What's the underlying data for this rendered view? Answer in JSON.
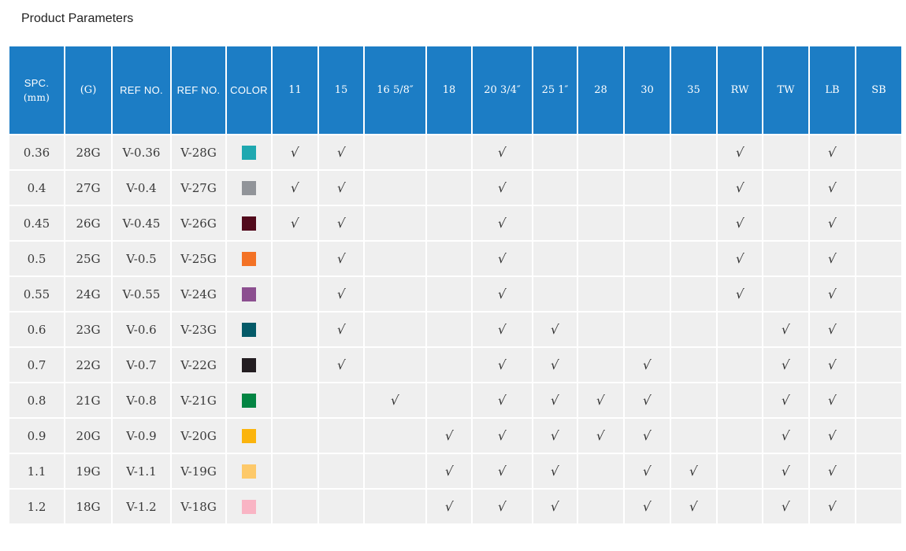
{
  "title": "Product Parameters",
  "colors": {
    "header_bg": "#1c7dc5",
    "cell_bg": "#efefef",
    "grid_line": "#ffffff",
    "body_text": "#3a3a3a",
    "highlight_text": "#ff6600",
    "check_mark": "#333333"
  },
  "check_glyph": "√",
  "table": {
    "columns": [
      {
        "label": "SPC.",
        "sub": "(mm)"
      },
      {
        "label": "(G)"
      },
      {
        "label": "REF NO."
      },
      {
        "label": "REF NO."
      },
      {
        "label": "COLOR"
      },
      {
        "label": "11"
      },
      {
        "label": "15"
      },
      {
        "label": "16 5/8″"
      },
      {
        "label": "18"
      },
      {
        "label": "20 3/4″"
      },
      {
        "label": "25 1″"
      },
      {
        "label": "28"
      },
      {
        "label": "30"
      },
      {
        "label": "35"
      },
      {
        "label": "RW"
      },
      {
        "label": "TW"
      },
      {
        "label": "LB"
      },
      {
        "label": "SB"
      }
    ],
    "size_column_labels": [
      "11",
      "15",
      "16 5/8″",
      "18",
      "20 3/4″",
      "25 1″",
      "28",
      "30",
      "35",
      "RW",
      "TW",
      "LB",
      "SB"
    ],
    "rows": [
      {
        "spc": "0.36",
        "g": "28G",
        "ref1": "V-0.36",
        "ref2": "V-28G",
        "color": "#1fa8b0",
        "ref1_highlight": false,
        "checks": [
          1,
          1,
          0,
          0,
          1,
          0,
          0,
          0,
          0,
          1,
          0,
          1,
          0
        ]
      },
      {
        "spc": "0.4",
        "g": "27G",
        "ref1": "V-0.4",
        "ref2": "V-27G",
        "color": "#919499",
        "ref1_highlight": false,
        "checks": [
          1,
          1,
          0,
          0,
          1,
          0,
          0,
          0,
          0,
          1,
          0,
          1,
          0
        ]
      },
      {
        "spc": "0.45",
        "g": "26G",
        "ref1": "V-0.45",
        "ref2": "V-26G",
        "color": "#520a1c",
        "ref1_highlight": false,
        "checks": [
          1,
          1,
          0,
          0,
          1,
          0,
          0,
          0,
          0,
          1,
          0,
          1,
          0
        ]
      },
      {
        "spc": "0.5",
        "g": "25G",
        "ref1": "V-0.5",
        "ref2": "V-25G",
        "color": "#f37225",
        "ref1_highlight": false,
        "checks": [
          0,
          1,
          0,
          0,
          1,
          0,
          0,
          0,
          0,
          1,
          0,
          1,
          0
        ]
      },
      {
        "spc": "0.55",
        "g": "24G",
        "ref1": "V-0.55",
        "ref2": "V-24G",
        "color": "#8c4f90",
        "ref1_highlight": true,
        "checks": [
          0,
          1,
          0,
          0,
          1,
          0,
          0,
          0,
          0,
          1,
          0,
          1,
          0
        ]
      },
      {
        "spc": "0.6",
        "g": "23G",
        "ref1": "V-0.6",
        "ref2": "V-23G",
        "color": "#045a68",
        "ref1_highlight": false,
        "checks": [
          0,
          1,
          0,
          0,
          1,
          1,
          0,
          0,
          0,
          0,
          1,
          1,
          0
        ]
      },
      {
        "spc": "0.7",
        "g": "22G",
        "ref1": "V-0.7",
        "ref2": "V-22G",
        "color": "#231d21",
        "ref1_highlight": false,
        "checks": [
          0,
          1,
          0,
          0,
          1,
          1,
          0,
          1,
          0,
          0,
          1,
          1,
          0
        ]
      },
      {
        "spc": "0.8",
        "g": "21G",
        "ref1": "V-0.8",
        "ref2": "V-21G",
        "color": "#038543",
        "ref1_highlight": false,
        "checks": [
          0,
          0,
          1,
          0,
          1,
          1,
          1,
          1,
          0,
          0,
          1,
          1,
          0
        ]
      },
      {
        "spc": "0.9",
        "g": "20G",
        "ref1": "V-0.9",
        "ref2": "V-20G",
        "color": "#fbb40d",
        "ref1_highlight": false,
        "checks": [
          0,
          0,
          0,
          1,
          1,
          1,
          1,
          1,
          0,
          0,
          1,
          1,
          0
        ]
      },
      {
        "spc": "1.1",
        "g": "19G",
        "ref1": "V-1.1",
        "ref2": "V-19G",
        "color": "#fdc96a",
        "ref1_highlight": false,
        "checks": [
          0,
          0,
          0,
          1,
          1,
          1,
          0,
          1,
          1,
          0,
          1,
          1,
          0
        ]
      },
      {
        "spc": "1.2",
        "g": "18G",
        "ref1": "V-1.2",
        "ref2": "V-18G",
        "color": "#f9b4c4",
        "ref1_highlight": false,
        "checks": [
          0,
          0,
          0,
          1,
          1,
          1,
          0,
          1,
          1,
          0,
          1,
          1,
          0
        ]
      }
    ]
  }
}
